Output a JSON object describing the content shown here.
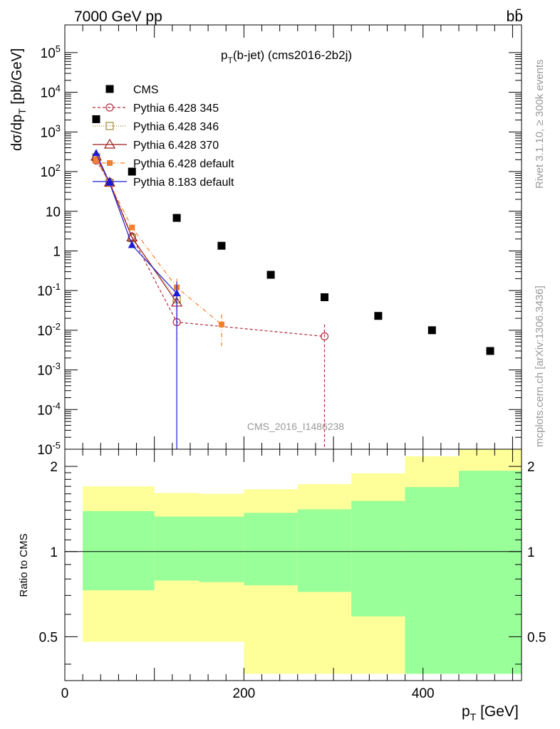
{
  "header": {
    "energy_label": "7000 GeV pp",
    "process_label": "bb̄",
    "plot_title": "p_T(b-jet) (cms2016-2b2j)",
    "side_text_top": "Rivet 3.1.10, ≥ 300k events",
    "side_text_bottom": "mcplots.cern.ch [arXiv:1306.3436]",
    "watermark": "CMS_2016_I1486238",
    "ratio_ylabel": "Ratio to CMS",
    "main_ylabel": "dσ/dp_T [pb/GeV]",
    "xlabel": "p_T [GeV]"
  },
  "colors": {
    "cms": "#000000",
    "py345": "#b22a3e",
    "py346": "#a08a3a",
    "py370": "#9a1b1b",
    "py6def": "#f57f2a",
    "py8def": "#1c1cd6",
    "band_inner": "#99ff99",
    "band_outer": "#ffff99"
  },
  "chart_data": {
    "type": "scatter",
    "xlim": [
      0,
      510
    ],
    "ylim_main": [
      1e-05,
      500000
    ],
    "yscale_main": "log",
    "main_ytick_labels": [
      "10^-5",
      "10^-4",
      "10^-3",
      "10^-2",
      "10^-1",
      "1",
      "10",
      "10^2",
      "10^3",
      "10^4",
      "10^5"
    ],
    "ylim_ratio": [
      0.35,
      2.3
    ],
    "yscale_ratio": "log",
    "ratio_ytick_labels": [
      "0.5",
      "1",
      "2"
    ],
    "xtick_labels": [
      "0",
      "200",
      "400"
    ],
    "legend_position": "top-left",
    "series": [
      {
        "name": "CMS",
        "style": "data",
        "points": [
          {
            "x": 35,
            "y": 2100
          },
          {
            "x": 75,
            "y": 100
          },
          {
            "x": 125,
            "y": 6.8
          },
          {
            "x": 175,
            "y": 1.35
          },
          {
            "x": 230,
            "y": 0.25
          },
          {
            "x": 290,
            "y": 0.068
          },
          {
            "x": 350,
            "y": 0.023
          },
          {
            "x": 410,
            "y": 0.01
          },
          {
            "x": 475,
            "y": 0.003
          }
        ]
      },
      {
        "name": "Pythia 6.428 345",
        "style": "dashed-open-circle",
        "points": [
          {
            "x": 35,
            "y": 190
          },
          {
            "x": 50,
            "y": 55
          },
          {
            "x": 75,
            "y": 2.3
          },
          {
            "x": 125,
            "y": 0.016,
            "ylo": 0.005,
            "yhi": 0.05
          },
          {
            "x": 290,
            "y": 0.007,
            "ylo": 1e-06,
            "yhi": 0.014
          }
        ]
      },
      {
        "name": "Pythia 6.428 346",
        "style": "dotted-open-square",
        "points": [
          {
            "x": 35,
            "y": 230
          },
          {
            "x": 50,
            "y": 52
          },
          {
            "x": 75,
            "y": 2.1
          },
          {
            "x": 125,
            "y": 0.06
          }
        ]
      },
      {
        "name": "Pythia 6.428 370",
        "style": "solid-open-triangle",
        "points": [
          {
            "x": 35,
            "y": 240
          },
          {
            "x": 50,
            "y": 53
          },
          {
            "x": 75,
            "y": 2.2
          },
          {
            "x": 125,
            "y": 0.05,
            "ylo": 0.02,
            "yhi": 0.1
          }
        ]
      },
      {
        "name": "Pythia 6.428 default",
        "style": "dashdot-filled-square",
        "points": [
          {
            "x": 35,
            "y": 200
          },
          {
            "x": 50,
            "y": 50
          },
          {
            "x": 75,
            "y": 3.9
          },
          {
            "x": 125,
            "y": 0.12,
            "ylo": 0.05,
            "yhi": 0.2
          },
          {
            "x": 175,
            "y": 0.014,
            "ylo": 0.004,
            "yhi": 0.025
          }
        ]
      },
      {
        "name": "Pythia 8.183 default",
        "style": "solid-filled-triangle",
        "points": [
          {
            "x": 35,
            "y": 290
          },
          {
            "x": 50,
            "y": 52
          },
          {
            "x": 75,
            "y": 1.4
          },
          {
            "x": 125,
            "y": 0.085,
            "ylo": 1e-06,
            "yhi": 0.17
          }
        ]
      }
    ],
    "ratio_bands": [
      {
        "xlo": 20,
        "xhi": 100,
        "outer_lo": 0.48,
        "outer_hi": 1.7,
        "inner_lo": 0.73,
        "inner_hi": 1.39
      },
      {
        "xlo": 100,
        "xhi": 150,
        "outer_lo": 0.48,
        "outer_hi": 1.61,
        "inner_lo": 0.79,
        "inner_hi": 1.33
      },
      {
        "xlo": 150,
        "xhi": 200,
        "outer_lo": 0.48,
        "outer_hi": 1.6,
        "inner_lo": 0.78,
        "inner_hi": 1.33
      },
      {
        "xlo": 200,
        "xhi": 260,
        "outer_lo": 0.37,
        "outer_hi": 1.66,
        "inner_lo": 0.76,
        "inner_hi": 1.37
      },
      {
        "xlo": 260,
        "xhi": 320,
        "outer_lo": 0.37,
        "outer_hi": 1.73,
        "inner_lo": 0.72,
        "inner_hi": 1.41
      },
      {
        "xlo": 320,
        "xhi": 380,
        "outer_lo": 0.37,
        "outer_hi": 1.89,
        "inner_lo": 0.59,
        "inner_hi": 1.51
      },
      {
        "xlo": 380,
        "xhi": 440,
        "outer_lo": 0.37,
        "outer_hi": 2.17,
        "inner_lo": 0.37,
        "inner_hi": 1.69
      },
      {
        "xlo": 440,
        "xhi": 510,
        "outer_lo": 0.37,
        "outer_hi": 2.3,
        "inner_lo": 0.37,
        "inner_hi": 1.93
      }
    ]
  }
}
